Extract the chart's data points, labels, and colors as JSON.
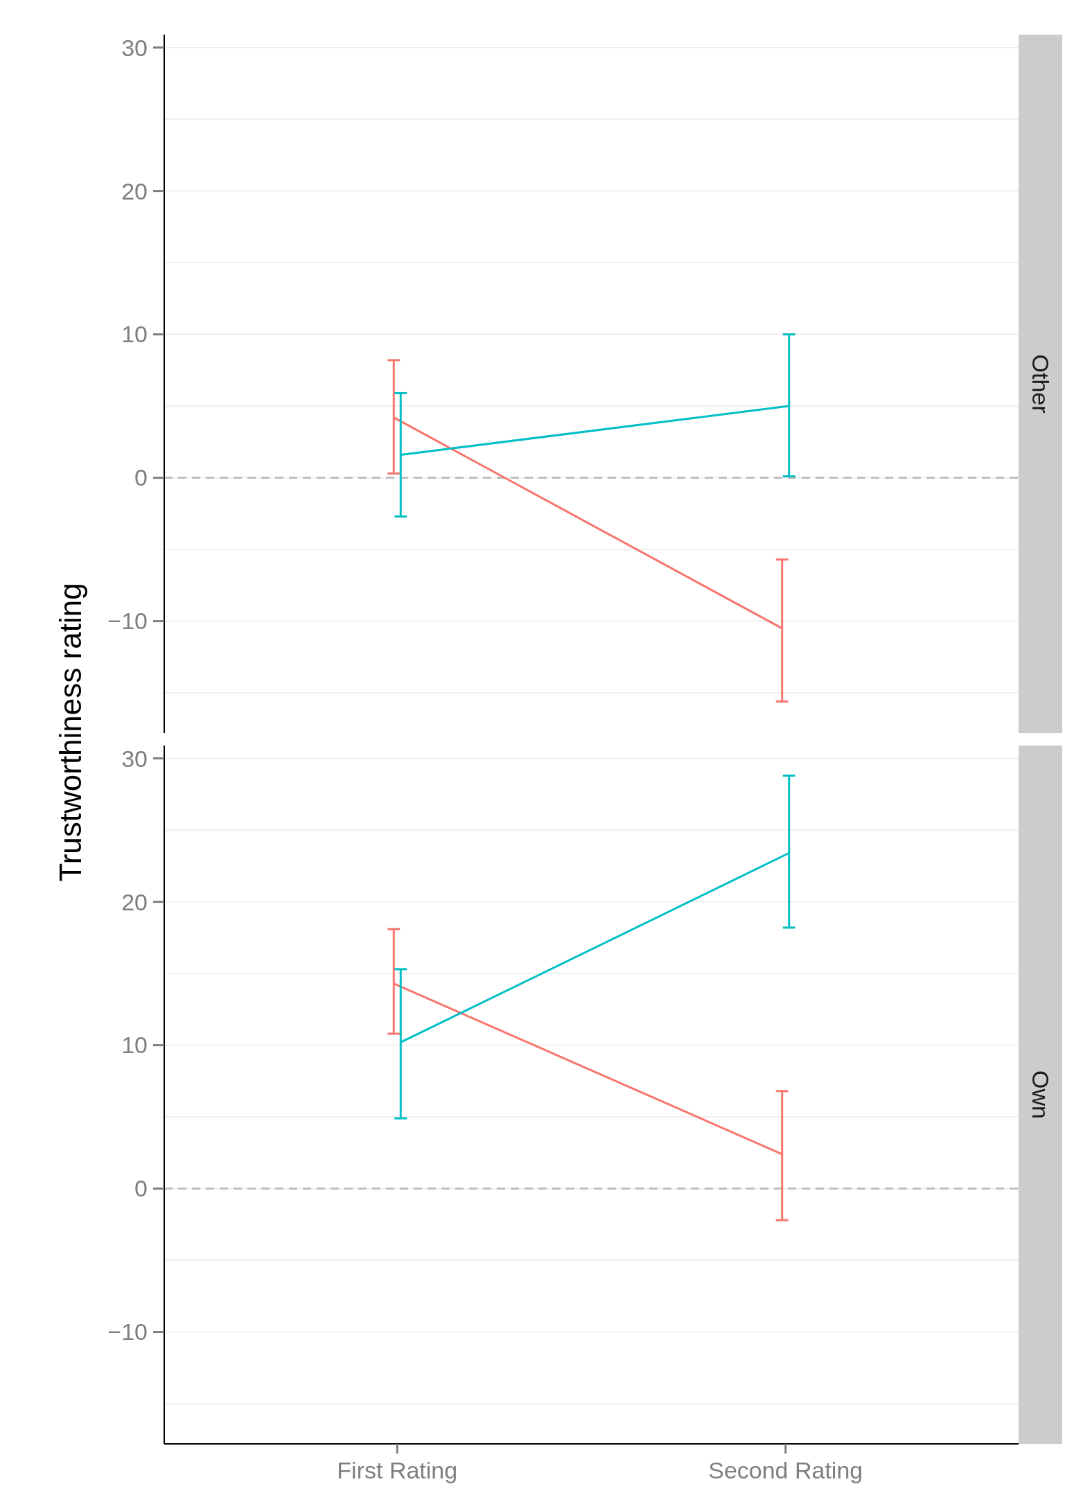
{
  "chart_data": [
    {
      "type": "line",
      "title": "Other",
      "ylabel": "Trustworthiness rating",
      "categories": [
        "First Rating",
        "Second Rating"
      ],
      "ylim": [
        -17.8,
        30.9
      ],
      "yticks": [
        {
          "value": -15,
          "label": null
        },
        {
          "value": -10,
          "label": "−10"
        },
        {
          "value": -5,
          "label": null
        },
        0,
        {
          "value": 5,
          "label": null
        },
        10,
        {
          "value": 15,
          "label": null
        },
        20,
        {
          "value": 25,
          "label": null
        },
        30
      ],
      "grid": "y",
      "tick_labels": "y",
      "marker": "none",
      "ref_lines": [
        {
          "axis": "y",
          "value": 0,
          "color": "#bebebe",
          "line_style": "dashed"
        }
      ],
      "series": [
        {
          "color": "#f8766d",
          "values": [
            4.2,
            -10.5
          ],
          "errors": [
            [
              0.3,
              8.2
            ],
            [
              -15.6,
              -5.7
            ]
          ]
        },
        {
          "color": "#00bfc4",
          "values": [
            1.6,
            5.0
          ],
          "errors": [
            [
              -2.7,
              5.9
            ],
            [
              0.1,
              10.0
            ]
          ]
        }
      ]
    },
    {
      "type": "line",
      "title": "Own",
      "categories": [
        "First Rating",
        "Second Rating"
      ],
      "ylim": [
        -17.8,
        30.9
      ],
      "yticks": [
        {
          "value": -15,
          "label": null
        },
        {
          "value": -10,
          "label": "−10"
        },
        {
          "value": -5,
          "label": null
        },
        0,
        {
          "value": 5,
          "label": null
        },
        10,
        {
          "value": 15,
          "label": null
        },
        20,
        {
          "value": 25,
          "label": null
        },
        30
      ],
      "grid": "y",
      "marker": "none",
      "ref_lines": [
        {
          "axis": "y",
          "value": 0,
          "color": "#bebebe",
          "line_style": "dashed"
        }
      ],
      "series": [
        {
          "color": "#f8766d",
          "values": [
            14.3,
            2.4
          ],
          "errors": [
            [
              10.8,
              18.1
            ],
            [
              -2.2,
              6.8
            ]
          ]
        },
        {
          "color": "#00bfc4",
          "values": [
            10.2,
            23.4
          ],
          "errors": [
            [
              4.9,
              15.3
            ],
            [
              18.2,
              28.8
            ]
          ]
        }
      ]
    }
  ]
}
